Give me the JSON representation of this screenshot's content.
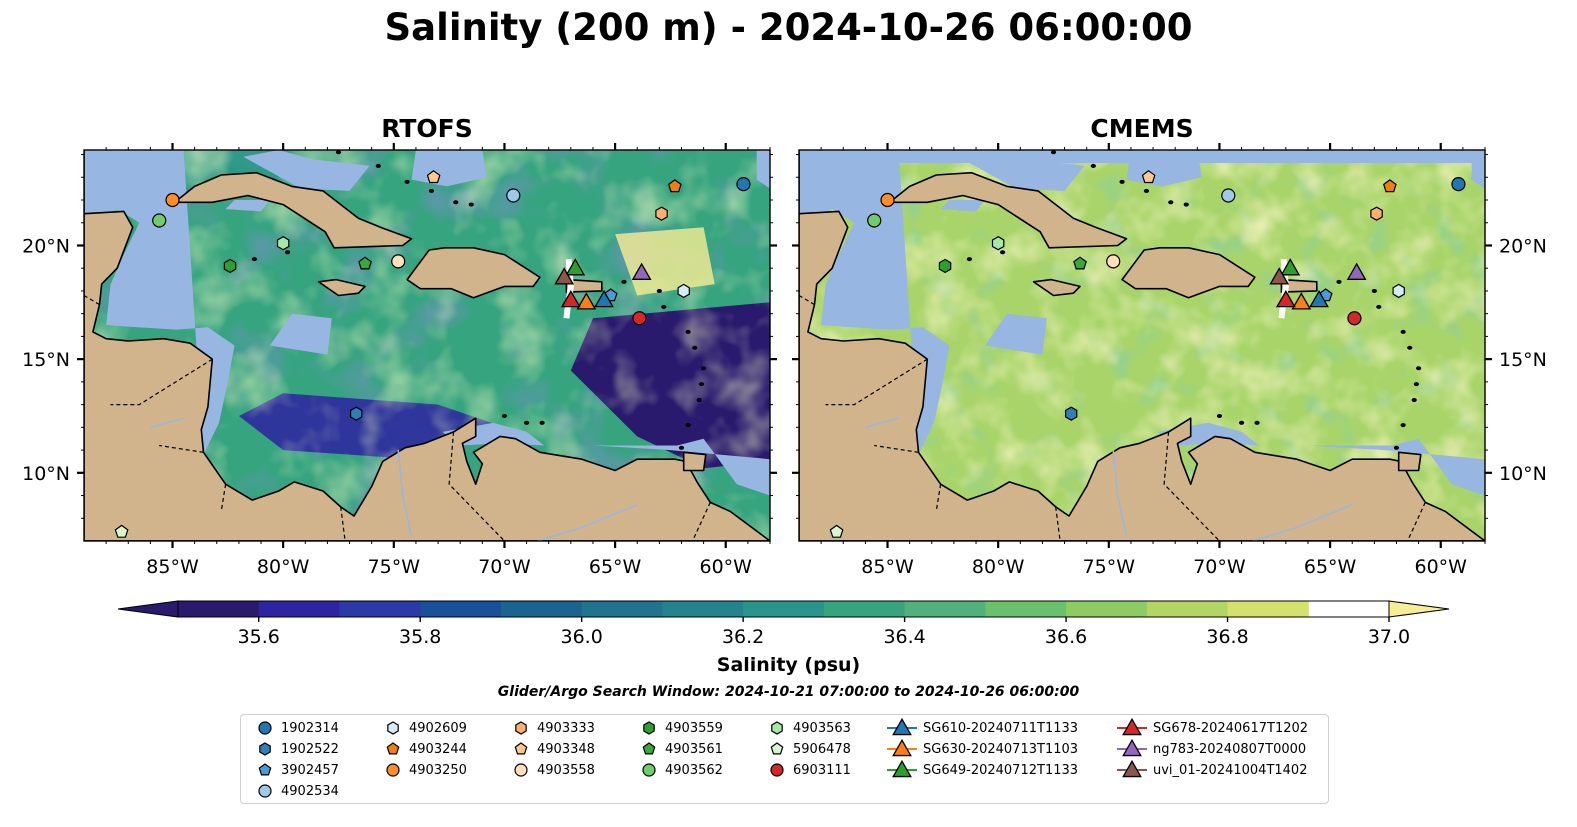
{
  "title": "Salinity (200 m) - 2024-10-26 06:00:00",
  "panels": [
    {
      "title": "RTOFS"
    },
    {
      "title": "CMEMS"
    }
  ],
  "axes": {
    "lon_ticks": [
      "85°W",
      "80°W",
      "75°W",
      "70°W",
      "65°W",
      "60°W"
    ],
    "lat_ticks": [
      "20°N",
      "15°N",
      "10°N"
    ],
    "lon_range": [
      -89,
      -58
    ],
    "lat_range": [
      7,
      24.2
    ]
  },
  "colorbar": {
    "label": "Salinity (psu)",
    "min": 35.5,
    "max": 37.0,
    "step": 0.1,
    "extend": "both",
    "ticks": [
      "35.6",
      "35.8",
      "36.0",
      "36.2",
      "36.4",
      "36.6",
      "36.8",
      "37.0"
    ],
    "colors": [
      "#2a1a6e",
      "#2e23a0",
      "#2b3aa6",
      "#1a4f9a",
      "#1b6391",
      "#21748d",
      "#24848d",
      "#2a958a",
      "#36a47f",
      "#50b27a",
      "#6ac06c",
      "#8ccc63",
      "#b2d663",
      "#d4e16d",
      "#f7ed94"
    ]
  },
  "search_window": "Glider/Argo Search Window: 2024-10-21 07:00:00 to 2024-10-26 06:00:00",
  "colors": {
    "land": "#d2b48c",
    "shelf": "#97b6e1",
    "deep": "#2a1a6e"
  },
  "legend": [
    {
      "label": "1902314",
      "marker": "circle",
      "color": "#1f77b4"
    },
    {
      "label": "1902522",
      "marker": "hexagon",
      "color": "#2f80b8"
    },
    {
      "label": "3902457",
      "marker": "pentagon",
      "color": "#4a9bd8"
    },
    {
      "label": "4902534",
      "marker": "circle",
      "color": "#9ecae8"
    },
    {
      "label": "4902609",
      "marker": "hexagon",
      "color": "#d6eaf8"
    },
    {
      "label": "4903244",
      "marker": "pentagon",
      "color": "#f07f10"
    },
    {
      "label": "4903250",
      "marker": "circle",
      "color": "#ff8c2a"
    },
    {
      "label": "4903333",
      "marker": "hexagon",
      "color": "#ffb070"
    },
    {
      "label": "4903348",
      "marker": "pentagon",
      "color": "#ffc88e"
    },
    {
      "label": "4903558",
      "marker": "circle",
      "color": "#ffe0bc"
    },
    {
      "label": "4903559",
      "marker": "hexagon",
      "color": "#2ca02c"
    },
    {
      "label": "4903561",
      "marker": "pentagon",
      "color": "#3aa93a"
    },
    {
      "label": "4903562",
      "marker": "circle",
      "color": "#6ccf6c"
    },
    {
      "label": "4903563",
      "marker": "hexagon",
      "color": "#a6e8a6"
    },
    {
      "label": "5906478",
      "marker": "pentagon",
      "color": "#d6f7cf"
    },
    {
      "label": "6903111",
      "marker": "circle",
      "color": "#d62728"
    },
    {
      "label": "SG610-20240711T1133",
      "marker": "triangle-line",
      "color": "#1f77b4"
    },
    {
      "label": "SG630-20240713T1103",
      "marker": "triangle-line",
      "color": "#ff7f0e"
    },
    {
      "label": "SG649-20240712T1133",
      "marker": "triangle-line",
      "color": "#2ca02c"
    },
    {
      "label": "SG678-20240617T1202",
      "marker": "triangle-line",
      "color": "#d62728"
    },
    {
      "label": "ng783-20240807T0000",
      "marker": "triangle-line",
      "color": "#9467bd"
    },
    {
      "label": "uvi_01-20241004T1402",
      "marker": "triangle-line",
      "color": "#8c564b"
    }
  ],
  "observations": [
    {
      "id": "1902314",
      "lon": -59.2,
      "lat": 22.7
    },
    {
      "id": "1902522",
      "lon": -76.7,
      "lat": 12.6
    },
    {
      "id": "3902457",
      "lon": -65.2,
      "lat": 17.8
    },
    {
      "id": "4902534",
      "lon": -69.6,
      "lat": 22.2
    },
    {
      "id": "4902609",
      "lon": -61.9,
      "lat": 18.0
    },
    {
      "id": "4903244",
      "lon": -62.3,
      "lat": 22.6
    },
    {
      "id": "4903250",
      "lon": -85.0,
      "lat": 22.0
    },
    {
      "id": "4903333",
      "lon": -62.9,
      "lat": 21.4
    },
    {
      "id": "4903348",
      "lon": -73.2,
      "lat": 23.0
    },
    {
      "id": "4903558",
      "lon": -74.8,
      "lat": 19.3
    },
    {
      "id": "4903559",
      "lon": -82.4,
      "lat": 19.1
    },
    {
      "id": "4903561",
      "lon": -76.3,
      "lat": 19.2
    },
    {
      "id": "4903562",
      "lon": -85.6,
      "lat": 21.1
    },
    {
      "id": "4903563",
      "lon": -80.0,
      "lat": 20.1
    },
    {
      "id": "5906478",
      "lon": -87.3,
      "lat": 7.4
    },
    {
      "id": "6903111",
      "lon": -63.9,
      "lat": 16.8
    },
    {
      "id": "SG610-20240711T1133",
      "lon": -65.5,
      "lat": 17.6
    },
    {
      "id": "SG630-20240713T1103",
      "lon": -66.3,
      "lat": 17.5
    },
    {
      "id": "SG649-20240712T1133",
      "lon": -66.8,
      "lat": 19.0
    },
    {
      "id": "SG678-20240617T1202",
      "lon": -67.0,
      "lat": 17.6
    },
    {
      "id": "ng783-20240807T0000",
      "lon": -63.8,
      "lat": 18.8
    },
    {
      "id": "uvi_01-20241004T1402",
      "lon": -67.3,
      "lat": 18.6
    }
  ]
}
